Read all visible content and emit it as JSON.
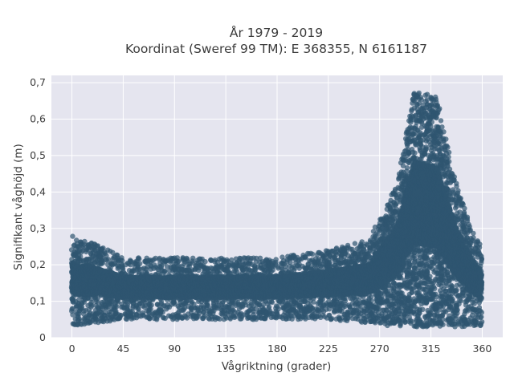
{
  "chart_data": {
    "type": "scatter",
    "title": "År 1979 - 2019",
    "subtitle": "Koordinat (Sweref 99 TM): E 368355, N 6161187",
    "xlabel": "Vågriktning (grader)",
    "ylabel": "Signifikant våghöjd (m)",
    "xlim": [
      -18,
      378
    ],
    "ylim": [
      0,
      0.72
    ],
    "x_ticks": [
      0,
      45,
      90,
      135,
      180,
      225,
      270,
      315,
      360
    ],
    "x_tick_labels": [
      "0",
      "45",
      "90",
      "135",
      "180",
      "225",
      "270",
      "315",
      "360"
    ],
    "y_ticks": [
      0,
      0.1,
      0.2,
      0.3,
      0.4,
      0.5,
      0.6,
      0.7
    ],
    "y_tick_labels": [
      "0",
      "0,1",
      "0,2",
      "0,3",
      "0,4",
      "0,5",
      "0,6",
      "0,7"
    ],
    "grid": true,
    "legend": "none",
    "colors": {
      "background": "#e5e5ef",
      "grid": "#ffffff",
      "marker": "#2f5670"
    },
    "series": [
      {
        "envelope": [
          {
            "x": 0,
            "y_min": 0.03,
            "y_max": 0.28
          },
          {
            "x": 20,
            "y_min": 0.04,
            "y_max": 0.26
          },
          {
            "x": 45,
            "y_min": 0.05,
            "y_max": 0.22
          },
          {
            "x": 90,
            "y_min": 0.05,
            "y_max": 0.22
          },
          {
            "x": 135,
            "y_min": 0.05,
            "y_max": 0.22
          },
          {
            "x": 180,
            "y_min": 0.05,
            "y_max": 0.22
          },
          {
            "x": 225,
            "y_min": 0.05,
            "y_max": 0.24
          },
          {
            "x": 260,
            "y_min": 0.04,
            "y_max": 0.27
          },
          {
            "x": 285,
            "y_min": 0.03,
            "y_max": 0.42
          },
          {
            "x": 300,
            "y_min": 0.03,
            "y_max": 0.68
          },
          {
            "x": 320,
            "y_min": 0.03,
            "y_max": 0.66
          },
          {
            "x": 335,
            "y_min": 0.03,
            "y_max": 0.45
          },
          {
            "x": 350,
            "y_min": 0.03,
            "y_max": 0.3
          },
          {
            "x": 360,
            "y_min": 0.03,
            "y_max": 0.25
          }
        ]
      }
    ]
  }
}
